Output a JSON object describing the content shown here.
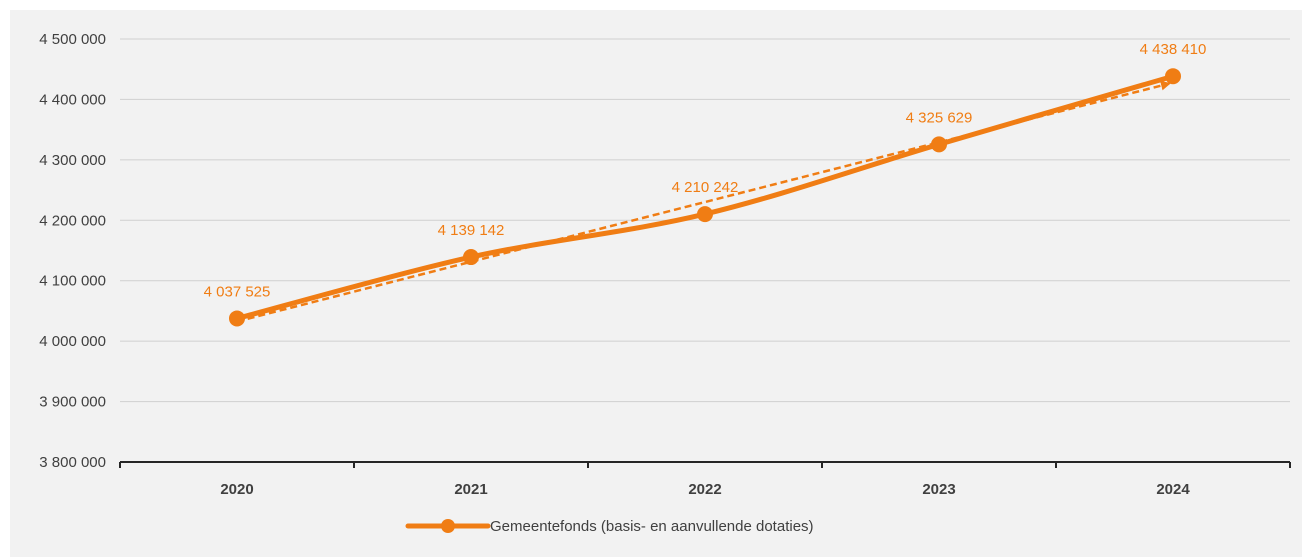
{
  "chart_data": {
    "type": "line",
    "categories": [
      "2020",
      "2021",
      "2022",
      "2023",
      "2024"
    ],
    "series": [
      {
        "name": "Gemeentefonds (basis- en aanvullende dotaties)",
        "values": [
          4037525,
          4139142,
          4210242,
          4325629,
          4438410
        ],
        "labels": [
          "4 037 525",
          "4 139 142",
          "4 210 242",
          "4 325 629",
          "4 438 410"
        ],
        "color": "#f07d14"
      }
    ],
    "trendline": {
      "style": "dashed",
      "arrow": true,
      "color": "#f07d14"
    },
    "ylim": [
      3800000,
      4500000
    ],
    "yticks": [
      3800000,
      3900000,
      4000000,
      4100000,
      4200000,
      4300000,
      4400000,
      4500000
    ],
    "ytick_labels": [
      "3 800 000",
      "3 900 000",
      "4 000 000",
      "4 100 000",
      "4 200 000",
      "4 300 000",
      "4 400 000",
      "4 500 000"
    ],
    "grid": true,
    "legend_position": "bottom",
    "title": "",
    "xlabel": "",
    "ylabel": ""
  }
}
